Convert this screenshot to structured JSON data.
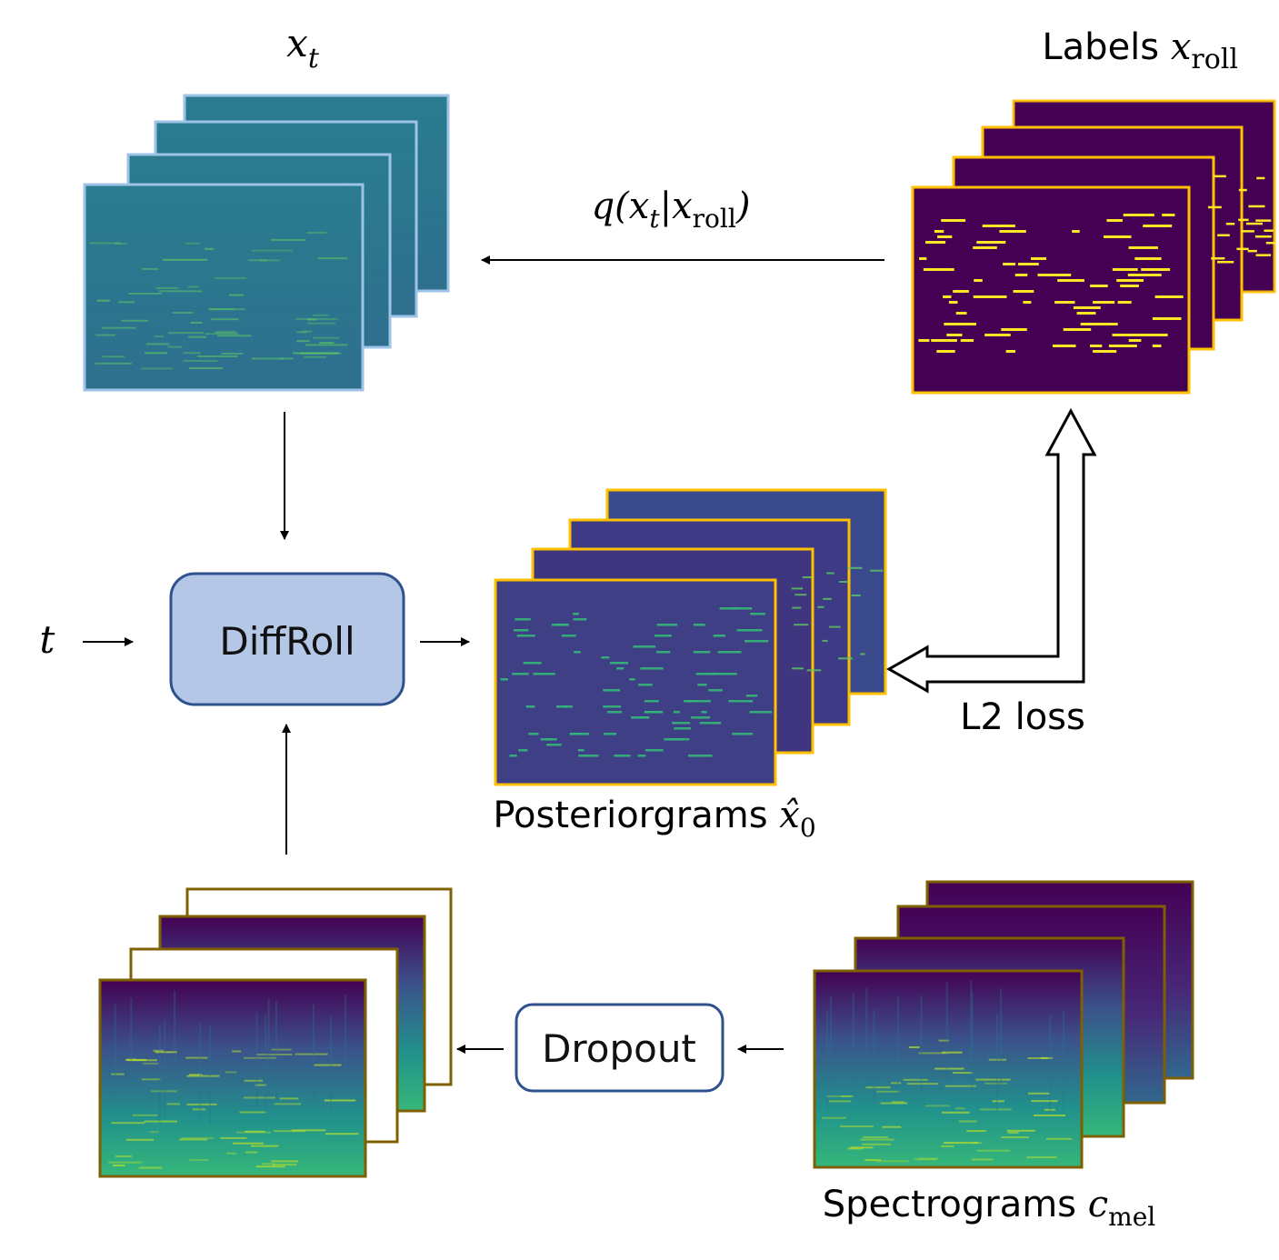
{
  "labels": {
    "xt_base": "x",
    "xt_sub": "t",
    "labels_word": "Labels",
    "labels_var": "x",
    "labels_sub": "roll",
    "forward_q": "q(",
    "forward_x": "x",
    "forward_t": "t",
    "forward_bar": "|",
    "forward_x2": "x",
    "forward_roll": "roll",
    "forward_close": ")",
    "t_input": "t",
    "posterior_word": "Posteriorgrams",
    "posterior_var": "x̂",
    "posterior_sub": "0",
    "loss": "L2 loss",
    "spec_word": "Spectrograms",
    "spec_var": "c",
    "spec_sub": "mel"
  },
  "boxes": {
    "model": "DiffRoll",
    "dropout": "Dropout"
  },
  "colors": {
    "model_fill": "#b4c7e7",
    "model_stroke": "#2f528f",
    "dropout_stroke": "#2f528f",
    "noise_frame": "#9dc3e6",
    "roll_frame": "#ffc000",
    "spec_frame": "#7f6000",
    "viridis_dark": "#440154",
    "viridis_teal": "#21918c",
    "viridis_yellow": "#fde725"
  }
}
